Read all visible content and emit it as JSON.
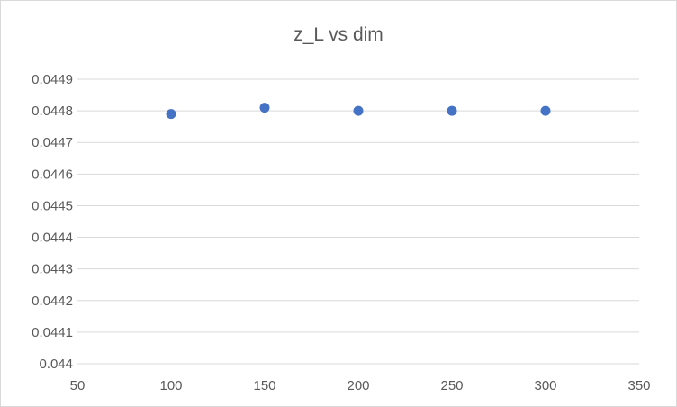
{
  "chart_data": {
    "type": "scatter",
    "title": "z_L vs dim",
    "xlabel": "",
    "ylabel": "",
    "xlim": [
      50,
      350
    ],
    "ylim": [
      0.044,
      0.0449
    ],
    "x_ticks": [
      50,
      100,
      150,
      200,
      250,
      300,
      350
    ],
    "y_ticks": [
      0.044,
      0.0441,
      0.0442,
      0.0443,
      0.0444,
      0.0445,
      0.0446,
      0.0447,
      0.0448,
      0.0449
    ],
    "x_tick_labels": [
      "50",
      "100",
      "150",
      "200",
      "250",
      "300",
      "350"
    ],
    "y_tick_labels": [
      "0.044",
      "0.0441",
      "0.0442",
      "0.0443",
      "0.0444",
      "0.0445",
      "0.0446",
      "0.0447",
      "0.0448",
      "0.0449"
    ],
    "grid": "horizontal",
    "legend": "none",
    "marker_color": "#4472c4",
    "grid_color": "#d9d9d9",
    "series": [
      {
        "x": [
          100,
          150,
          200,
          250,
          300
        ],
        "y": [
          0.04479,
          0.04481,
          0.0448,
          0.0448,
          0.0448
        ]
      }
    ]
  }
}
